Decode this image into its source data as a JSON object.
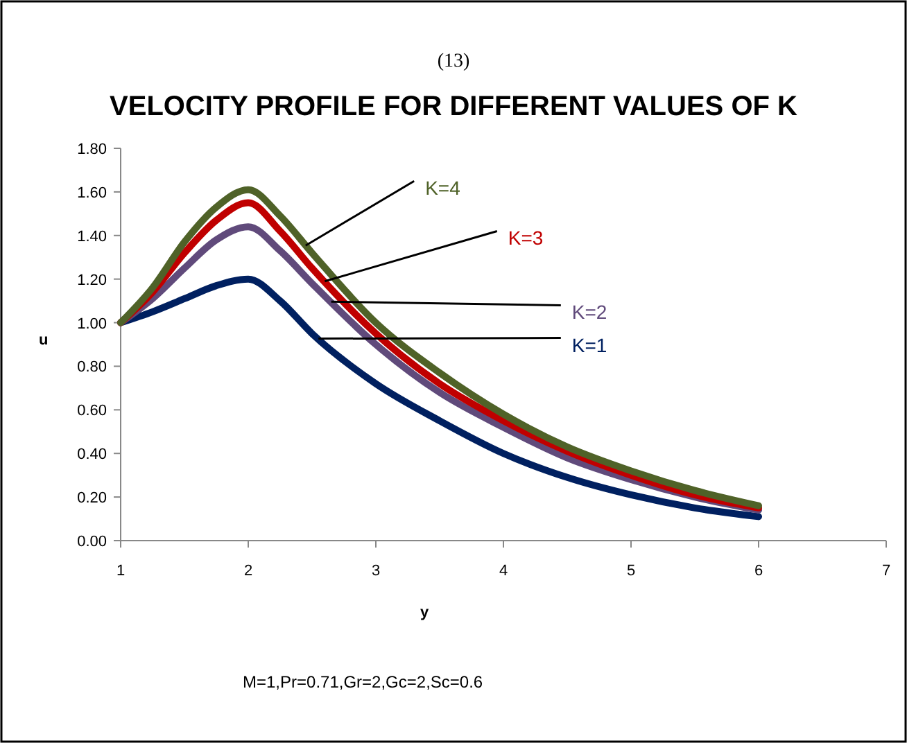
{
  "chart_data": {
    "type": "line",
    "title": "VELOCITY PROFILE FOR DIFFERENT VALUES OF K",
    "xlabel": "y",
    "ylabel": "u",
    "annotations": [
      "(13)",
      "M=1,Pr=0.71,Gr=2,Gc=2,Sc=0.6"
    ],
    "x": [
      1,
      1.25,
      1.5,
      1.75,
      2,
      2.25,
      2.5,
      3,
      3.5,
      4,
      4.5,
      5,
      5.5,
      6
    ],
    "series": [
      {
        "name": "K=1",
        "color": "#002060",
        "values": [
          1.0,
          1.05,
          1.11,
          1.17,
          1.2,
          1.1,
          0.95,
          0.72,
          0.55,
          0.4,
          0.29,
          0.21,
          0.15,
          0.11
        ]
      },
      {
        "name": "K=2",
        "color": "#604a7b",
        "values": [
          1.0,
          1.11,
          1.25,
          1.38,
          1.44,
          1.33,
          1.18,
          0.9,
          0.68,
          0.52,
          0.38,
          0.28,
          0.2,
          0.14
        ]
      },
      {
        "name": "K=3",
        "color": "#c00000",
        "values": [
          1.0,
          1.14,
          1.32,
          1.47,
          1.55,
          1.42,
          1.25,
          0.95,
          0.72,
          0.55,
          0.41,
          0.3,
          0.21,
          0.15
        ]
      },
      {
        "name": "K=4",
        "color": "#4f6228",
        "values": [
          1.0,
          1.16,
          1.37,
          1.53,
          1.61,
          1.49,
          1.32,
          1.0,
          0.77,
          0.58,
          0.43,
          0.32,
          0.23,
          0.16
        ]
      }
    ],
    "xlim": [
      1,
      7
    ],
    "xticks": [
      1,
      2,
      3,
      4,
      5,
      6,
      7
    ],
    "ylim": [
      0,
      1.8
    ],
    "yticks": [
      {
        "value": 0,
        "label": "0.00"
      },
      {
        "value": 0.2,
        "label": "0.20"
      },
      {
        "value": 0.4,
        "label": "0.40"
      },
      {
        "value": 0.6,
        "label": "0.60"
      },
      {
        "value": 0.8,
        "label": "0.80"
      },
      {
        "value": 1,
        "label": "1.00"
      },
      {
        "value": 1.2,
        "label": "1.20"
      },
      {
        "value": 1.4,
        "label": "1.40"
      },
      {
        "value": 1.6,
        "label": "1.60"
      },
      {
        "value": 1.8,
        "label": "1.80"
      }
    ],
    "grid": false,
    "legend": false,
    "marker": "none",
    "line_style": "solid"
  }
}
